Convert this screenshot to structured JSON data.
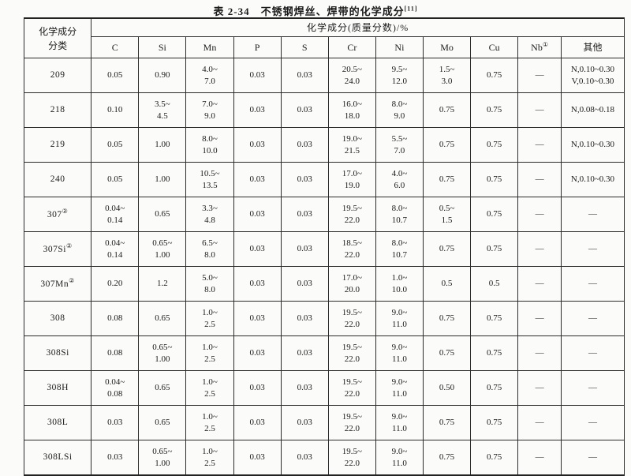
{
  "title": {
    "text": "表 2-34　不锈钢焊丝、焊带的化学成分",
    "sup": "[11]"
  },
  "table": {
    "corner_header": "化学成分\n分类",
    "span_header": "化学成分(质量分数)/%",
    "columns": [
      {
        "label": "C"
      },
      {
        "label": "Si"
      },
      {
        "label": "Mn"
      },
      {
        "label": "P"
      },
      {
        "label": "S"
      },
      {
        "label": "Cr"
      },
      {
        "label": "Ni"
      },
      {
        "label": "Mo"
      },
      {
        "label": "Cu"
      },
      {
        "label": "Nb",
        "sup": "①"
      },
      {
        "label": "其他"
      }
    ],
    "column_keys": [
      "C",
      "Si",
      "Mn",
      "P",
      "S",
      "Cr",
      "Ni",
      "Mo",
      "Cu",
      "Nb",
      "other"
    ],
    "rows": [
      {
        "name": "209",
        "cells": [
          "0.05",
          "0.90",
          "4.0~\n7.0",
          "0.03",
          "0.03",
          "20.5~\n24.0",
          "9.5~\n12.0",
          "1.5~\n3.0",
          "0.75",
          "—",
          "N,0.10~0.30\nV,0.10~0.30"
        ]
      },
      {
        "name": "218",
        "cells": [
          "0.10",
          "3.5~\n4.5",
          "7.0~\n9.0",
          "0.03",
          "0.03",
          "16.0~\n18.0",
          "8.0~\n9.0",
          "0.75",
          "0.75",
          "—",
          "N,0.08~0.18"
        ]
      },
      {
        "name": "219",
        "cells": [
          "0.05",
          "1.00",
          "8.0~\n10.0",
          "0.03",
          "0.03",
          "19.0~\n21.5",
          "5.5~\n7.0",
          "0.75",
          "0.75",
          "—",
          "N,0.10~0.30"
        ]
      },
      {
        "name": "240",
        "cells": [
          "0.05",
          "1.00",
          "10.5~\n13.5",
          "0.03",
          "0.03",
          "17.0~\n19.0",
          "4.0~\n6.0",
          "0.75",
          "0.75",
          "—",
          "N,0.10~0.30"
        ]
      },
      {
        "name": "307",
        "name_sup": "②",
        "cells": [
          "0.04~\n0.14",
          "0.65",
          "3.3~\n4.8",
          "0.03",
          "0.03",
          "19.5~\n22.0",
          "8.0~\n10.7",
          "0.5~\n1.5",
          "0.75",
          "—",
          "—"
        ]
      },
      {
        "name": "307Si",
        "name_sup": "②",
        "cells": [
          "0.04~\n0.14",
          "0.65~\n1.00",
          "6.5~\n8.0",
          "0.03",
          "0.03",
          "18.5~\n22.0",
          "8.0~\n10.7",
          "0.75",
          "0.75",
          "—",
          "—"
        ]
      },
      {
        "name": "307Mn",
        "name_sup": "②",
        "cells": [
          "0.20",
          "1.2",
          "5.0~\n8.0",
          "0.03",
          "0.03",
          "17.0~\n20.0",
          "1.0~\n10.0",
          "0.5",
          "0.5",
          "—",
          "—"
        ]
      },
      {
        "name": "308",
        "cells": [
          "0.08",
          "0.65",
          "1.0~\n2.5",
          "0.03",
          "0.03",
          "19.5~\n22.0",
          "9.0~\n11.0",
          "0.75",
          "0.75",
          "—",
          "—"
        ]
      },
      {
        "name": "308Si",
        "cells": [
          "0.08",
          "0.65~\n1.00",
          "1.0~\n2.5",
          "0.03",
          "0.03",
          "19.5~\n22.0",
          "9.0~\n11.0",
          "0.75",
          "0.75",
          "—",
          "—"
        ]
      },
      {
        "name": "308H",
        "cells": [
          "0.04~\n0.08",
          "0.65",
          "1.0~\n2.5",
          "0.03",
          "0.03",
          "19.5~\n22.0",
          "9.0~\n11.0",
          "0.50",
          "0.75",
          "—",
          "—"
        ]
      },
      {
        "name": "308L",
        "cells": [
          "0.03",
          "0.65",
          "1.0~\n2.5",
          "0.03",
          "0.03",
          "19.5~\n22.0",
          "9.0~\n11.0",
          "0.75",
          "0.75",
          "—",
          "—"
        ]
      },
      {
        "name": "308LSi",
        "cells": [
          "0.03",
          "0.65~\n1.00",
          "1.0~\n2.5",
          "0.03",
          "0.03",
          "19.5~\n22.0",
          "9.0~\n11.0",
          "0.75",
          "0.75",
          "—",
          "—"
        ]
      }
    ]
  }
}
